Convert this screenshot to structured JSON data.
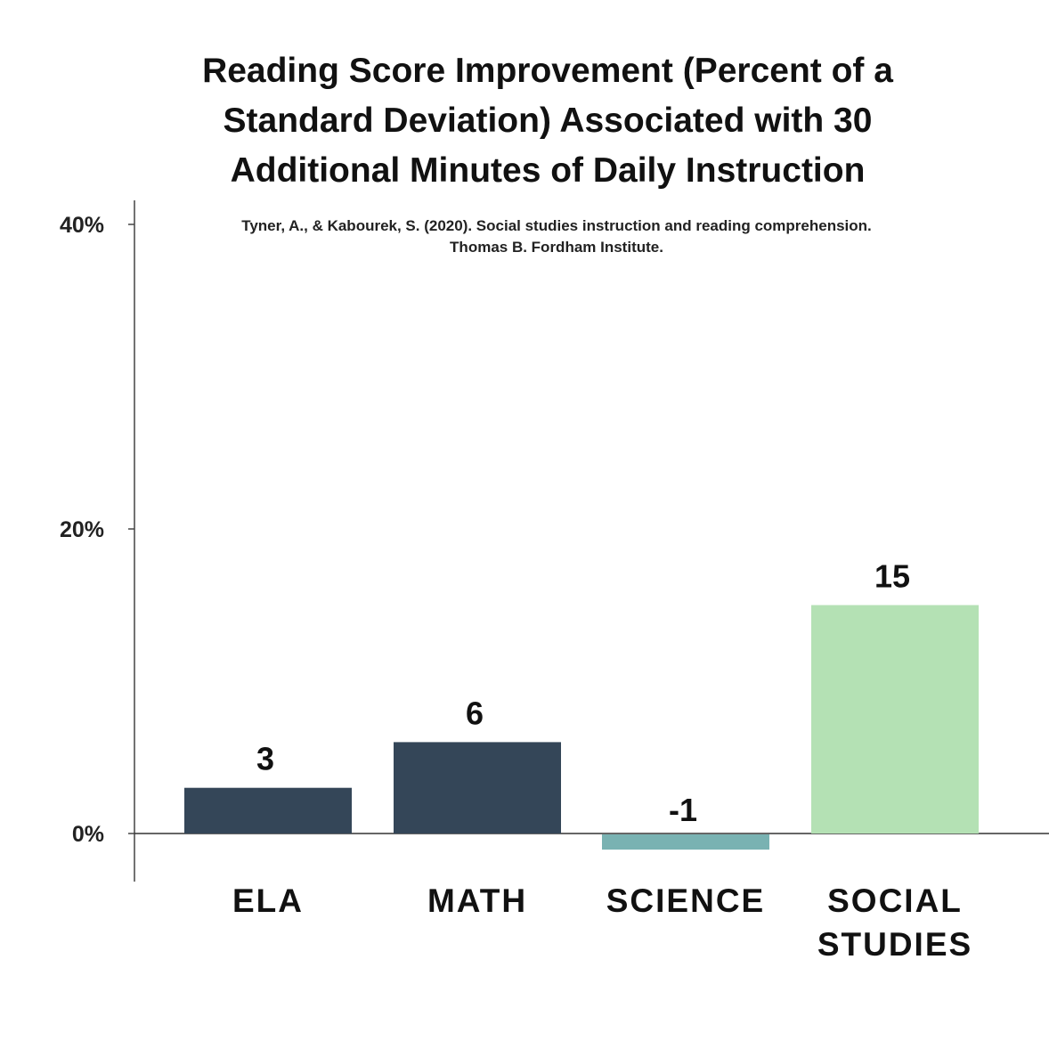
{
  "chart_data": {
    "type": "bar",
    "title_lines": [
      "Reading Score Improvement (Percent of a",
      "Standard Deviation) Associated with 30",
      "Additional Minutes of Daily Instruction"
    ],
    "subtitle_lines": [
      "Tyner, A., & Kabourek, S. (2020). Social studies instruction and reading comprehension.",
      "Thomas B. Fordham Institute."
    ],
    "categories": [
      [
        "ELA"
      ],
      [
        "MATH"
      ],
      [
        "SCIENCE"
      ],
      [
        "SOCIAL",
        "STUDIES"
      ]
    ],
    "values": [
      3,
      6,
      -1,
      15
    ],
    "value_labels": [
      "3",
      "6",
      "-1",
      "15"
    ],
    "colors": [
      "#344658",
      "#344658",
      "#79b2b2",
      "#b4e1b4"
    ],
    "y_ticks": [
      {
        "value": 0,
        "label": "0%"
      },
      {
        "value": 20,
        "label": "20%"
      },
      {
        "value": 40,
        "label": "40%"
      }
    ],
    "ylim": [
      -3,
      42
    ],
    "xlabel": "",
    "ylabel": "",
    "grid": false
  }
}
